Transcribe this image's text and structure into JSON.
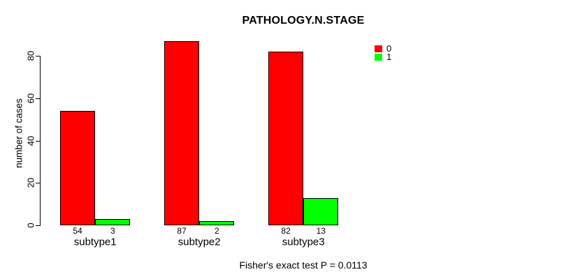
{
  "title": "PATHOLOGY.N.STAGE",
  "y_axis_label": "number of cases",
  "footer_note": "Fisher's exact test P = 0.0113",
  "legend": {
    "position": "top-right",
    "entries": [
      {
        "label": "0",
        "color": "#FF0000"
      },
      {
        "label": "1",
        "color": "#00FF00"
      }
    ]
  },
  "chart_data": {
    "type": "bar",
    "title": "PATHOLOGY.N.STAGE",
    "categories": [
      "subtype1",
      "subtype2",
      "subtype3"
    ],
    "series": [
      {
        "name": "0",
        "color": "#FF0000",
        "values": [
          54,
          87,
          82
        ]
      },
      {
        "name": "1",
        "color": "#00FF00",
        "values": [
          3,
          2,
          13
        ]
      }
    ],
    "bar_value_labels": [
      [
        54,
        3
      ],
      [
        87,
        2
      ],
      [
        82,
        13
      ]
    ],
    "xlabel": "",
    "ylabel": "number of cases",
    "yticks": [
      0,
      20,
      40,
      60,
      80
    ],
    "ylim": [
      0,
      87
    ],
    "grid": false,
    "legend_position": "top-right",
    "annotation": "Fisher's exact test P = 0.0113",
    "bar_border_color": "#000000"
  }
}
